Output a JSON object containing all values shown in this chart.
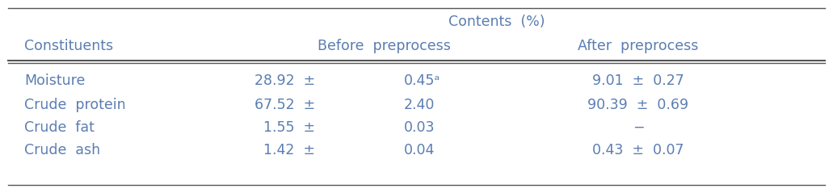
{
  "title": "Contents  (%)",
  "col_header_1": "Constituents",
  "col_header_2": "Before  preprocess",
  "col_header_3": "After  preprocess",
  "rows": [
    [
      "Moisture",
      "28.92  ±",
      "0.45ᵃ",
      "9.01  ±  0.27"
    ],
    [
      "Crude  protein",
      "67.52  ±",
      "2.40",
      "90.39  ±  0.69"
    ],
    [
      "Crude  fat",
      "1.55  ±",
      "0.03",
      "−"
    ],
    [
      "Crude  ash",
      "1.42  ±",
      "0.04",
      "0.43  ±  0.07"
    ]
  ],
  "text_color": "#5B7DB1",
  "bg_color": "#FFFFFF",
  "font_size": 12.5,
  "line_color": "#555555",
  "fig_width": 10.31,
  "fig_height": 2.39,
  "dpi": 100
}
